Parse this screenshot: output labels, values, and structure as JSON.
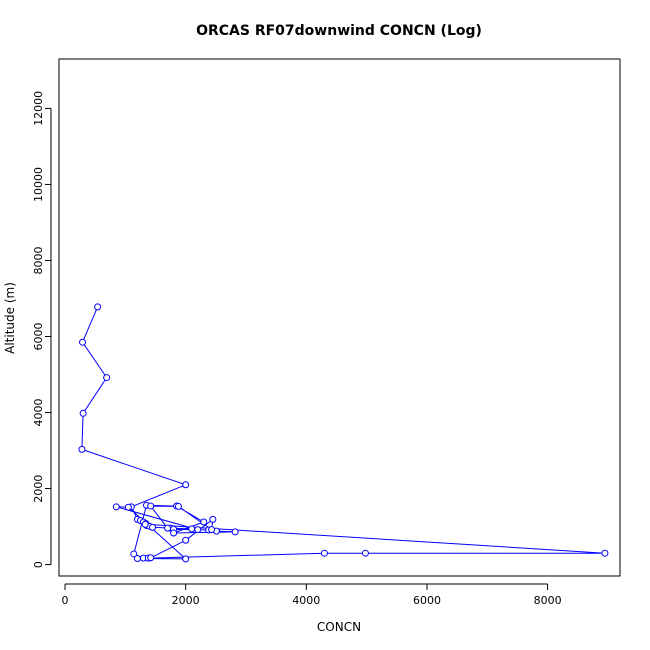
{
  "chart_data": {
    "type": "line",
    "title": "ORCAS RF07downwind CONCN (Log)",
    "xlabel": "CONCN",
    "ylabel": "Altitude (m)",
    "xlim": [
      -100,
      9200
    ],
    "ylim": [
      -300,
      13300
    ],
    "xticks": [
      "0",
      "2000",
      "4000",
      "6000",
      "8000"
    ],
    "xtick_values": [
      0,
      2000,
      4000,
      6000,
      8000
    ],
    "yticks": [
      "0",
      "2000",
      "4000",
      "6000",
      "8000",
      "10000",
      "12000"
    ],
    "ytick_values": [
      0,
      2000,
      4000,
      6000,
      8000,
      10000,
      12000
    ],
    "series_color": "#0000ff",
    "marker": "open-circle",
    "series": [
      {
        "x": [
          540,
          290,
          690,
          300,
          280,
          2000,
          1100,
          1200,
          1250,
          1300,
          1340,
          1350,
          1400,
          1450,
          1750,
          1800,
          2380,
          2510,
          2820,
          1800,
          2300,
          1850,
          1350,
          1140,
          1300,
          1380,
          1420,
          2000,
          2450,
          2430,
          1880,
          1420,
          1700,
          2100,
          2200,
          850,
          1050,
          2000,
          1200,
          4300,
          4980,
          8950,
          1330
        ],
        "y": [
          6780,
          5850,
          4920,
          3980,
          3030,
          2100,
          1520,
          1190,
          1160,
          1120,
          1080,
          1030,
          1010,
          980,
          960,
          930,
          910,
          880,
          860,
          830,
          1120,
          1540,
          1560,
          280,
          170,
          170,
          180,
          640,
          1190,
          920,
          1530,
          1540,
          960,
          940,
          920,
          1520,
          1510,
          150,
          160,
          300,
          300,
          300,
          1060
        ]
      }
    ]
  }
}
